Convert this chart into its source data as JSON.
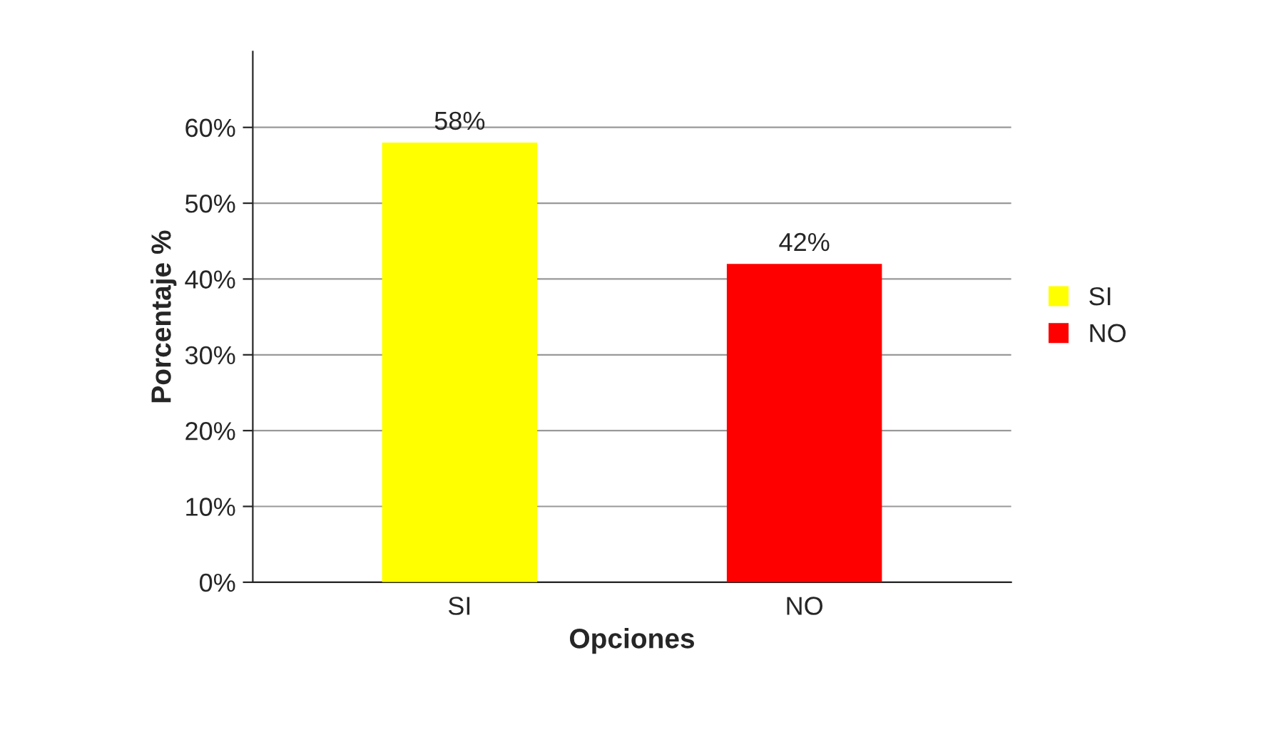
{
  "chart_data": {
    "type": "bar",
    "xlabel": "Opciones",
    "ylabel": "Porcentaje %",
    "categories": [
      "SI",
      "NO"
    ],
    "series": [
      {
        "name": "SI",
        "color": "#ffff00",
        "values": [
          58,
          null
        ]
      },
      {
        "name": "NO",
        "color": "#ff0000",
        "values": [
          null,
          42
        ]
      }
    ],
    "value_labels": [
      "58%",
      "42%"
    ],
    "ylim": [
      0,
      70
    ],
    "yticks": [
      {
        "value": 0,
        "label": "0%"
      },
      {
        "value": 10,
        "label": "10%"
      },
      {
        "value": 20,
        "label": "20%"
      },
      {
        "value": 30,
        "label": "30%"
      },
      {
        "value": 40,
        "label": "40%"
      },
      {
        "value": 50,
        "label": "50%"
      },
      {
        "value": 60,
        "label": "60%"
      }
    ],
    "grid": "y",
    "legend": "right"
  }
}
